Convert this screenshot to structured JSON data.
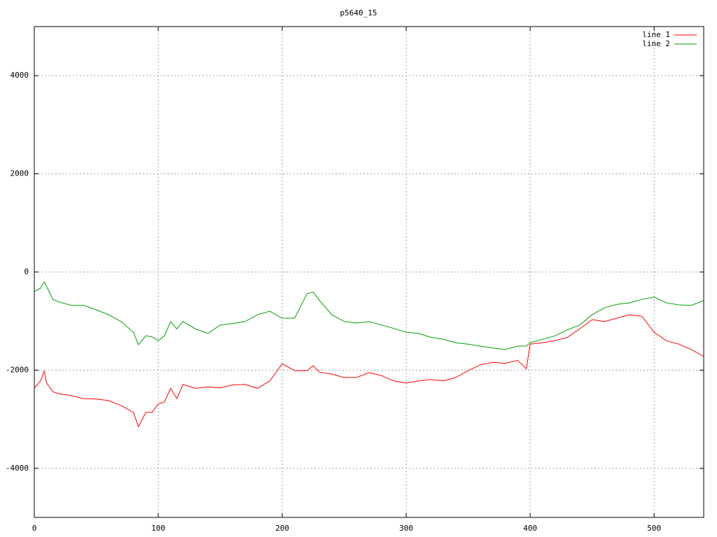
{
  "chart_data": {
    "type": "line",
    "title": "p5640_15",
    "x": [
      0,
      5,
      8,
      10,
      15,
      20,
      30,
      40,
      50,
      60,
      70,
      80,
      84,
      90,
      95,
      100,
      105,
      110,
      115,
      120,
      130,
      140,
      150,
      160,
      170,
      180,
      190,
      200,
      210,
      220,
      225,
      230,
      240,
      250,
      260,
      270,
      280,
      290,
      300,
      310,
      320,
      330,
      340,
      350,
      360,
      370,
      380,
      390,
      397,
      400,
      410,
      420,
      430,
      440,
      450,
      460,
      470,
      480,
      490,
      500,
      510,
      520,
      530,
      540
    ],
    "series": [
      {
        "name": "line 1",
        "color": "#ff0000",
        "values": [
          -2365,
          -2220,
          -2020,
          -2265,
          -2440,
          -2480,
          -2520,
          -2580,
          -2590,
          -2620,
          -2720,
          -2860,
          -3150,
          -2860,
          -2860,
          -2690,
          -2650,
          -2370,
          -2580,
          -2290,
          -2370,
          -2340,
          -2360,
          -2300,
          -2290,
          -2370,
          -2220,
          -1870,
          -2010,
          -2010,
          -1910,
          -2040,
          -2080,
          -2150,
          -2150,
          -2050,
          -2110,
          -2220,
          -2260,
          -2220,
          -2190,
          -2220,
          -2150,
          -2010,
          -1890,
          -1840,
          -1860,
          -1800,
          -1970,
          -1470,
          -1440,
          -1400,
          -1330,
          -1160,
          -970,
          -1010,
          -940,
          -870,
          -900,
          -1230,
          -1400,
          -1470,
          -1580,
          -1720
        ]
      },
      {
        "name": "line 2",
        "color": "#00a000",
        "values": [
          -400,
          -330,
          -200,
          -300,
          -560,
          -610,
          -680,
          -680,
          -770,
          -870,
          -1010,
          -1230,
          -1480,
          -1300,
          -1320,
          -1400,
          -1300,
          -1010,
          -1160,
          -1010,
          -1160,
          -1250,
          -1080,
          -1050,
          -1010,
          -870,
          -800,
          -940,
          -940,
          -440,
          -410,
          -580,
          -870,
          -1010,
          -1040,
          -1010,
          -1080,
          -1150,
          -1230,
          -1250,
          -1330,
          -1370,
          -1440,
          -1470,
          -1510,
          -1550,
          -1580,
          -1510,
          -1510,
          -1440,
          -1370,
          -1300,
          -1180,
          -1080,
          -870,
          -730,
          -660,
          -630,
          -560,
          -510,
          -630,
          -670,
          -680,
          -580
        ]
      }
    ],
    "xlim": [
      0,
      540
    ],
    "ylim": [
      -5000,
      5000
    ],
    "xticks": [
      0,
      100,
      200,
      300,
      400,
      500
    ],
    "yticks": [
      -4000,
      -2000,
      0,
      2000,
      4000
    ],
    "grid": true,
    "legend": "top-right"
  }
}
